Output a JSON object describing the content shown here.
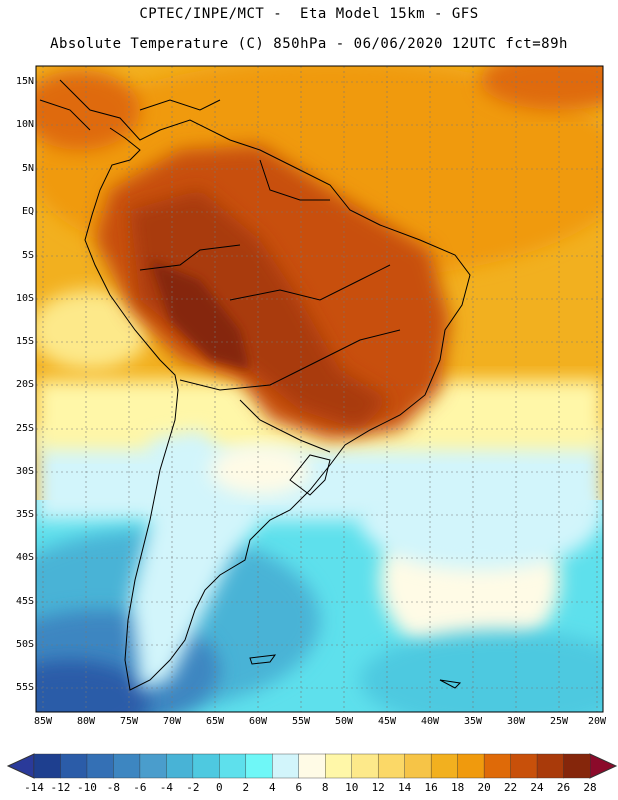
{
  "header": {
    "line1": "CPTEC/INPE/MCT -  Eta Model 15km - GFS",
    "line2": "Absolute Temperature (C) 850hPa - 06/06/2020 12UTC fct=89h"
  },
  "axes": {
    "lat_ticks": [
      "15N",
      "10N",
      "5N",
      "EQ",
      "5S",
      "10S",
      "15S",
      "20S",
      "25S",
      "30S",
      "35S",
      "40S",
      "45S",
      "50S",
      "55S"
    ],
    "lon_ticks": [
      "85W",
      "80W",
      "75W",
      "70W",
      "65W",
      "60W",
      "55W",
      "50W",
      "45W",
      "40W",
      "35W",
      "30W",
      "25W",
      "20W"
    ]
  },
  "colorbar": {
    "labels": [
      "-14",
      "-12",
      "-10",
      "-8",
      "-6",
      "-4",
      "-2",
      "0",
      "2",
      "4",
      "6",
      "8",
      "10",
      "12",
      "14",
      "16",
      "18",
      "20",
      "22",
      "24",
      "26",
      "28"
    ],
    "colors": [
      "#1e3f8f",
      "#2b5ca8",
      "#3470b5",
      "#3d86c1",
      "#4a9dcc",
      "#48b3d6",
      "#4ec9e0",
      "#5ee0ec",
      "#6ff7f7",
      "#d2f5fb",
      "#fffbe6",
      "#fff7a8",
      "#fde98a",
      "#fbd867",
      "#f6c447",
      "#f2b01f",
      "#f09a0d",
      "#df6a08",
      "#c8500a",
      "#a93a0a",
      "#85260b"
    ],
    "under_color": "#2a3a9a",
    "over_color": "#8b0a2a"
  }
}
